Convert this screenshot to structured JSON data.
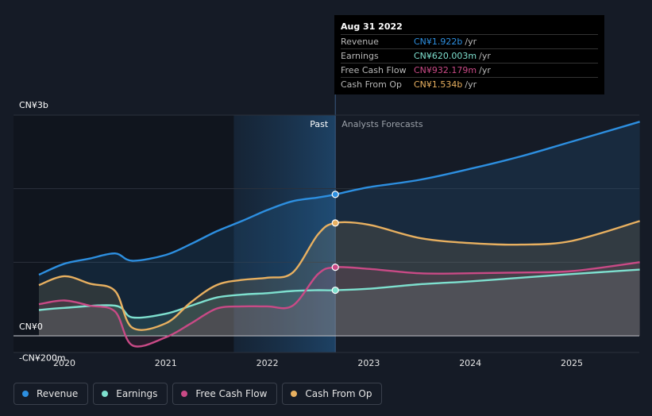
{
  "colors": {
    "revenue": "#2d8fe0",
    "earnings": "#7ee0cf",
    "free_cash_flow": "#c94a86",
    "cash_from_op": "#e8b060",
    "past_label": "#ffffff",
    "forecast_label": "#9aa0a8"
  },
  "regions": {
    "past_label": "Past",
    "forecast_label": "Analysts Forecasts"
  },
  "tooltip": {
    "date": "Aug 31 2022",
    "rows": [
      {
        "name": "Revenue",
        "value": "CN¥1.922b",
        "unit": "/yr",
        "color": "#2d8fe0"
      },
      {
        "name": "Earnings",
        "value": "CN¥620.003m",
        "unit": "/yr",
        "color": "#7ee0cf"
      },
      {
        "name": "Free Cash Flow",
        "value": "CN¥932.179m",
        "unit": "/yr",
        "color": "#c94a86"
      },
      {
        "name": "Cash From Op",
        "value": "CN¥1.534b",
        "unit": "/yr",
        "color": "#e8b060"
      }
    ]
  },
  "legend": [
    {
      "label": "Revenue",
      "color": "#2d8fe0"
    },
    {
      "label": "Earnings",
      "color": "#7ee0cf"
    },
    {
      "label": "Free Cash Flow",
      "color": "#c94a86"
    },
    {
      "label": "Cash From Op",
      "color": "#e8b060"
    }
  ],
  "chart_data": {
    "type": "line",
    "title": "",
    "xlabel": "",
    "ylabel": "",
    "x_ticks": [
      {
        "label": "2020",
        "value": 2020.0
      },
      {
        "label": "2021",
        "value": 2021.0
      },
      {
        "label": "2022",
        "value": 2022.0
      },
      {
        "label": "2023",
        "value": 2023.0
      },
      {
        "label": "2024",
        "value": 2024.0
      },
      {
        "label": "2025",
        "value": 2025.0
      }
    ],
    "y_ticks": [
      {
        "label": "CN¥3b",
        "value": 3000
      },
      {
        "label": "CN¥0",
        "value": 0
      },
      {
        "label": "-CN¥200m",
        "value": -200
      }
    ],
    "xlim": [
      2019.25,
      2025.7
    ],
    "ylim": [
      -200,
      3000
    ],
    "units": "CN¥ millions",
    "past_end": 2022.67,
    "highlight_start": 2021.67,
    "series": [
      {
        "name": "Revenue",
        "key": "revenue",
        "points": [
          [
            2019.75,
            830
          ],
          [
            2020.0,
            980
          ],
          [
            2020.25,
            1050
          ],
          [
            2020.5,
            1120
          ],
          [
            2020.67,
            1020
          ],
          [
            2021.0,
            1100
          ],
          [
            2021.25,
            1250
          ],
          [
            2021.5,
            1420
          ],
          [
            2021.75,
            1560
          ],
          [
            2022.0,
            1710
          ],
          [
            2022.25,
            1830
          ],
          [
            2022.5,
            1880
          ],
          [
            2022.67,
            1922
          ],
          [
            2023.0,
            2020
          ],
          [
            2023.5,
            2120
          ],
          [
            2024.0,
            2270
          ],
          [
            2024.5,
            2440
          ],
          [
            2025.0,
            2640
          ],
          [
            2025.67,
            2910
          ]
        ]
      },
      {
        "name": "Earnings",
        "key": "earnings",
        "points": [
          [
            2019.75,
            350
          ],
          [
            2020.0,
            380
          ],
          [
            2020.5,
            410
          ],
          [
            2020.67,
            250
          ],
          [
            2021.0,
            300
          ],
          [
            2021.25,
            410
          ],
          [
            2021.5,
            520
          ],
          [
            2021.75,
            560
          ],
          [
            2022.0,
            580
          ],
          [
            2022.25,
            610
          ],
          [
            2022.5,
            620
          ],
          [
            2022.67,
            620
          ],
          [
            2023.0,
            640
          ],
          [
            2023.5,
            700
          ],
          [
            2024.0,
            740
          ],
          [
            2024.5,
            790
          ],
          [
            2025.0,
            840
          ],
          [
            2025.67,
            900
          ]
        ]
      },
      {
        "name": "Free Cash Flow",
        "key": "free_cash_flow",
        "points": [
          [
            2019.75,
            430
          ],
          [
            2020.0,
            480
          ],
          [
            2020.25,
            410
          ],
          [
            2020.5,
            330
          ],
          [
            2020.67,
            -130
          ],
          [
            2021.0,
            -20
          ],
          [
            2021.25,
            170
          ],
          [
            2021.5,
            370
          ],
          [
            2021.75,
            400
          ],
          [
            2022.0,
            400
          ],
          [
            2022.25,
            410
          ],
          [
            2022.5,
            840
          ],
          [
            2022.67,
            932
          ],
          [
            2023.0,
            910
          ],
          [
            2023.5,
            850
          ],
          [
            2024.0,
            850
          ],
          [
            2024.5,
            860
          ],
          [
            2025.0,
            880
          ],
          [
            2025.67,
            1000
          ]
        ]
      },
      {
        "name": "Cash From Op",
        "key": "cash_from_op",
        "points": [
          [
            2019.75,
            690
          ],
          [
            2020.0,
            810
          ],
          [
            2020.25,
            710
          ],
          [
            2020.5,
            610
          ],
          [
            2020.67,
            110
          ],
          [
            2021.0,
            170
          ],
          [
            2021.25,
            460
          ],
          [
            2021.5,
            690
          ],
          [
            2021.75,
            760
          ],
          [
            2022.0,
            790
          ],
          [
            2022.25,
            860
          ],
          [
            2022.5,
            1380
          ],
          [
            2022.67,
            1534
          ],
          [
            2023.0,
            1510
          ],
          [
            2023.5,
            1330
          ],
          [
            2024.0,
            1260
          ],
          [
            2024.5,
            1240
          ],
          [
            2025.0,
            1290
          ],
          [
            2025.67,
            1560
          ]
        ]
      }
    ]
  }
}
